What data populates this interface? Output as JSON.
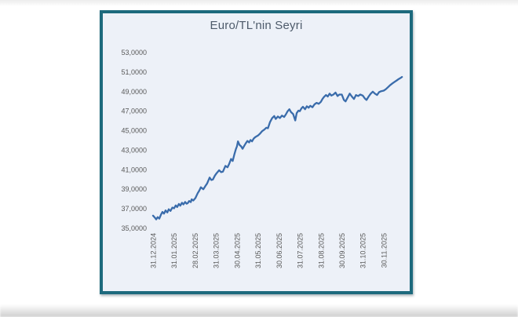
{
  "chart": {
    "title": "Euro/TL'nin Seyri"
  },
  "chart_data": {
    "type": "line",
    "title": "Euro/TL'nin Seyri",
    "xlabel": "",
    "ylabel": "",
    "ylim": [
      35,
      53
    ],
    "y_tick_step": 2,
    "grid": false,
    "legend_position": "none",
    "line_color": "#3a6cab",
    "plot_background_color": "#edf1f8",
    "border_color": "#1d6a7d",
    "tick_label_color": "#595959",
    "title_color": "#4d5a6a",
    "y_ticks": [
      {
        "value": 53,
        "label": "53,0000"
      },
      {
        "value": 51,
        "label": "51,0000"
      },
      {
        "value": 49,
        "label": "49,0000"
      },
      {
        "value": 47,
        "label": "47,0000"
      },
      {
        "value": 45,
        "label": "45,0000"
      },
      {
        "value": 43,
        "label": "43,0000"
      },
      {
        "value": 41,
        "label": "41,0000"
      },
      {
        "value": 39,
        "label": "39,0000"
      },
      {
        "value": 37,
        "label": "37,0000"
      },
      {
        "value": 35,
        "label": "35,0000"
      }
    ],
    "x_ticks": [
      {
        "m": 0,
        "label": "31.12.2024"
      },
      {
        "m": 1,
        "label": "31.01.2025"
      },
      {
        "m": 2,
        "label": "28.02.2025"
      },
      {
        "m": 3,
        "label": "31.03.2025"
      },
      {
        "m": 4,
        "label": "30.04.2025"
      },
      {
        "m": 5,
        "label": "31.05.2025"
      },
      {
        "m": 6,
        "label": "30.06.2025"
      },
      {
        "m": 7,
        "label": "31.07.2025"
      },
      {
        "m": 8,
        "label": "31.08.2025"
      },
      {
        "m": 9,
        "label": "30.09.2025"
      },
      {
        "m": 10,
        "label": "31.10.2025"
      },
      {
        "m": 11,
        "label": "30.11.2025"
      }
    ],
    "series": [
      {
        "name": "Euro/TL",
        "points": [
          [
            0.0,
            36.3
          ],
          [
            0.08,
            36.12
          ],
          [
            0.15,
            35.92
          ],
          [
            0.22,
            36.15
          ],
          [
            0.3,
            36.0
          ],
          [
            0.38,
            36.42
          ],
          [
            0.45,
            36.68
          ],
          [
            0.52,
            36.5
          ],
          [
            0.6,
            36.83
          ],
          [
            0.68,
            36.62
          ],
          [
            0.75,
            36.95
          ],
          [
            0.83,
            36.78
          ],
          [
            0.92,
            37.12
          ],
          [
            1.0,
            37.05
          ],
          [
            1.08,
            37.35
          ],
          [
            1.15,
            37.18
          ],
          [
            1.23,
            37.5
          ],
          [
            1.3,
            37.32
          ],
          [
            1.38,
            37.62
          ],
          [
            1.45,
            37.45
          ],
          [
            1.53,
            37.7
          ],
          [
            1.6,
            37.52
          ],
          [
            1.65,
            37.57
          ],
          [
            1.72,
            37.8
          ],
          [
            1.8,
            37.68
          ],
          [
            1.84,
            37.97
          ],
          [
            1.92,
            37.85
          ],
          [
            2.02,
            38.1
          ],
          [
            2.13,
            38.6
          ],
          [
            2.2,
            38.85
          ],
          [
            2.28,
            39.2
          ],
          [
            2.4,
            39.0
          ],
          [
            2.5,
            39.35
          ],
          [
            2.58,
            39.6
          ],
          [
            2.7,
            40.2
          ],
          [
            2.78,
            39.95
          ],
          [
            2.85,
            40.0
          ],
          [
            2.95,
            40.4
          ],
          [
            3.03,
            40.65
          ],
          [
            3.15,
            40.95
          ],
          [
            3.25,
            40.75
          ],
          [
            3.33,
            40.8
          ],
          [
            3.45,
            41.4
          ],
          [
            3.55,
            41.25
          ],
          [
            3.63,
            41.6
          ],
          [
            3.72,
            42.1
          ],
          [
            3.8,
            41.9
          ],
          [
            3.88,
            42.6
          ],
          [
            3.95,
            43.1
          ],
          [
            4.0,
            43.4
          ],
          [
            4.05,
            43.9
          ],
          [
            4.12,
            43.55
          ],
          [
            4.2,
            43.4
          ],
          [
            4.27,
            43.15
          ],
          [
            4.35,
            43.45
          ],
          [
            4.42,
            43.7
          ],
          [
            4.5,
            43.95
          ],
          [
            4.58,
            43.8
          ],
          [
            4.65,
            44.05
          ],
          [
            4.72,
            43.9
          ],
          [
            4.8,
            44.2
          ],
          [
            4.88,
            44.35
          ],
          [
            5.0,
            44.5
          ],
          [
            5.1,
            44.7
          ],
          [
            5.2,
            44.95
          ],
          [
            5.3,
            45.1
          ],
          [
            5.4,
            45.3
          ],
          [
            5.48,
            45.25
          ],
          [
            5.58,
            45.9
          ],
          [
            5.68,
            46.3
          ],
          [
            5.78,
            46.5
          ],
          [
            5.85,
            46.2
          ],
          [
            5.95,
            46.45
          ],
          [
            6.05,
            46.3
          ],
          [
            6.15,
            46.55
          ],
          [
            6.25,
            46.4
          ],
          [
            6.33,
            46.65
          ],
          [
            6.42,
            47.0
          ],
          [
            6.5,
            47.2
          ],
          [
            6.58,
            46.9
          ],
          [
            6.68,
            46.7
          ],
          [
            6.78,
            46.05
          ],
          [
            6.85,
            46.8
          ],
          [
            6.93,
            47.05
          ],
          [
            7.0,
            47.0
          ],
          [
            7.08,
            47.3
          ],
          [
            7.15,
            47.45
          ],
          [
            7.25,
            47.2
          ],
          [
            7.33,
            47.5
          ],
          [
            7.42,
            47.35
          ],
          [
            7.5,
            47.55
          ],
          [
            7.6,
            47.4
          ],
          [
            7.7,
            47.7
          ],
          [
            7.8,
            47.85
          ],
          [
            7.9,
            47.75
          ],
          [
            8.0,
            47.95
          ],
          [
            8.08,
            48.25
          ],
          [
            8.15,
            48.45
          ],
          [
            8.25,
            48.65
          ],
          [
            8.33,
            48.5
          ],
          [
            8.42,
            48.8
          ],
          [
            8.5,
            48.6
          ],
          [
            8.6,
            48.7
          ],
          [
            8.7,
            48.9
          ],
          [
            8.8,
            48.55
          ],
          [
            8.88,
            48.7
          ],
          [
            9.0,
            48.7
          ],
          [
            9.1,
            48.15
          ],
          [
            9.18,
            48.0
          ],
          [
            9.28,
            48.4
          ],
          [
            9.38,
            48.8
          ],
          [
            9.48,
            48.5
          ],
          [
            9.58,
            48.25
          ],
          [
            9.68,
            48.65
          ],
          [
            9.78,
            48.55
          ],
          [
            9.88,
            48.7
          ],
          [
            10.0,
            48.6
          ],
          [
            10.1,
            48.3
          ],
          [
            10.18,
            48.15
          ],
          [
            10.28,
            48.5
          ],
          [
            10.38,
            48.8
          ],
          [
            10.48,
            49.0
          ],
          [
            10.58,
            48.8
          ],
          [
            10.68,
            48.65
          ],
          [
            10.78,
            48.95
          ],
          [
            10.88,
            49.05
          ],
          [
            11.0,
            49.1
          ],
          [
            11.1,
            49.25
          ],
          [
            11.2,
            49.45
          ],
          [
            11.3,
            49.65
          ],
          [
            11.42,
            49.85
          ],
          [
            11.52,
            50.0
          ],
          [
            11.62,
            50.15
          ],
          [
            11.72,
            50.3
          ],
          [
            11.8,
            50.4
          ],
          [
            11.87,
            50.5
          ]
        ]
      }
    ]
  }
}
